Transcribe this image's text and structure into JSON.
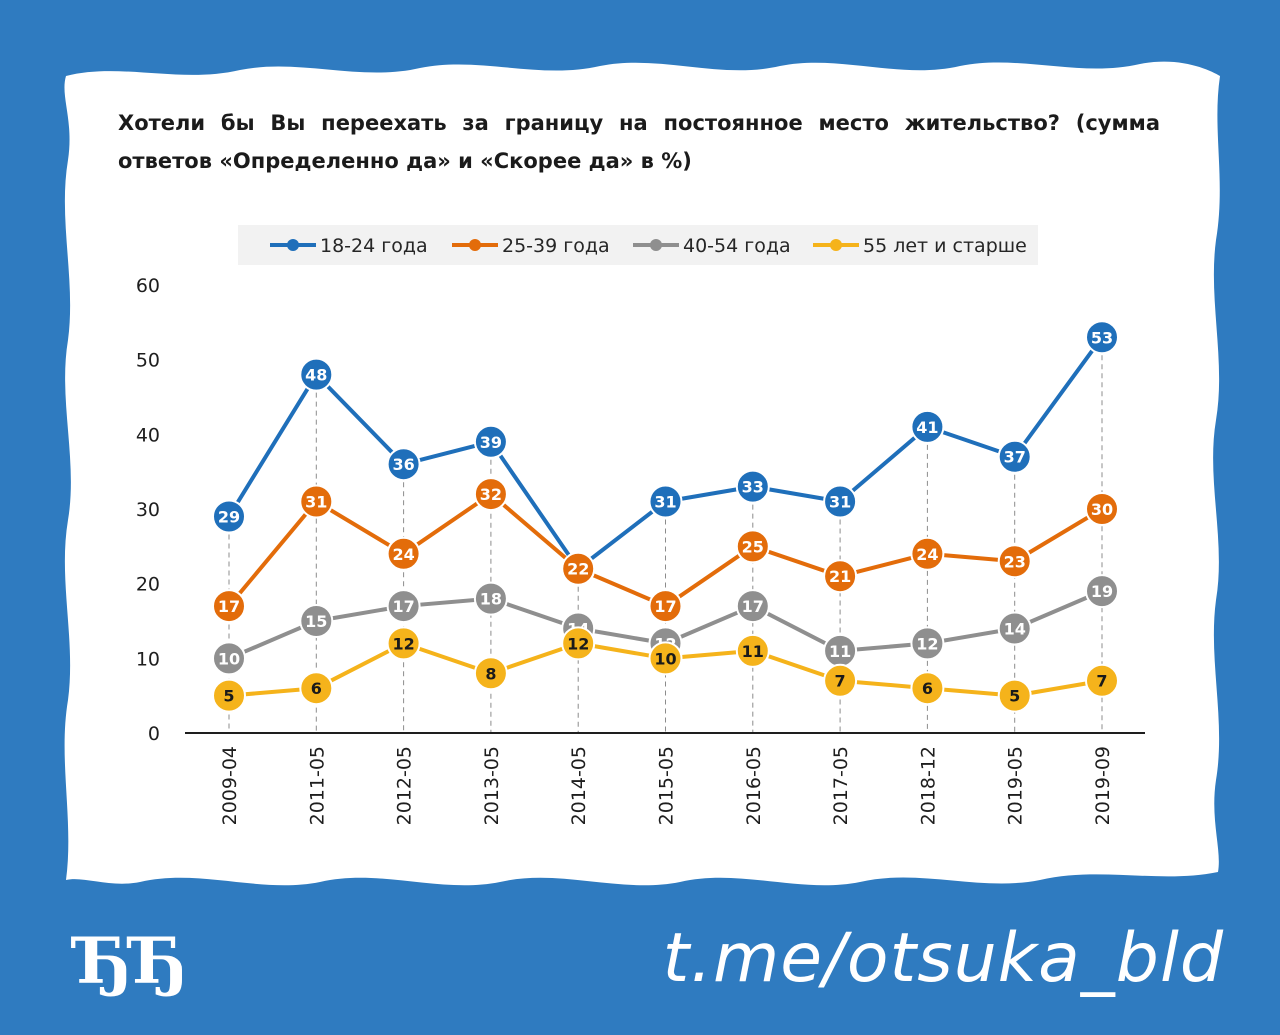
{
  "title": "Хотели бы Вы переехать за границу на постоянное место жительство? (сумма ответов «Определенно да» и «Скорее да» в %)",
  "brand": {
    "logo_text": "ЂЂ",
    "channel_link": "t.me/otsuka_bld"
  },
  "colors": {
    "background": "#2f7bc0",
    "card": "#ffffff",
    "axis": "#1e1e1e",
    "guide": "#8c8c8c"
  },
  "chart_data": {
    "type": "line",
    "title": "Хотели бы Вы переехать за границу на постоянное место жительство? (сумма ответов «Определенно да» и «Скорее да» в %)",
    "xlabel": "",
    "ylabel": "",
    "ylim": [
      0,
      60
    ],
    "yticks": [
      0,
      10,
      20,
      30,
      40,
      50,
      60
    ],
    "grid": false,
    "legend_position": "top-center",
    "categories": [
      "2009-04",
      "2011-05",
      "2012-05",
      "2013-05",
      "2014-05",
      "2015-05",
      "2016-05",
      "2017-05",
      "2018-12",
      "2019-05",
      "2019-09"
    ],
    "series": [
      {
        "name": "18-24 года",
        "color": "#1f6fba",
        "label_color": "#ffffff",
        "values": [
          29,
          48,
          36,
          39,
          22,
          31,
          33,
          31,
          41,
          37,
          53
        ]
      },
      {
        "name": "25-39 года",
        "color": "#e36c0a",
        "label_color": "#ffffff",
        "values": [
          17,
          31,
          24,
          32,
          22,
          17,
          25,
          21,
          24,
          23,
          30
        ]
      },
      {
        "name": "40-54 года",
        "color": "#8f8f8f",
        "label_color": "#ffffff",
        "values": [
          10,
          15,
          17,
          18,
          14,
          12,
          17,
          11,
          12,
          14,
          19
        ]
      },
      {
        "name": "55 лет и старше",
        "color": "#f5b31b",
        "label_color": "#1a1a1a",
        "values": [
          5,
          6,
          12,
          8,
          12,
          10,
          11,
          7,
          6,
          5,
          7
        ]
      }
    ]
  }
}
